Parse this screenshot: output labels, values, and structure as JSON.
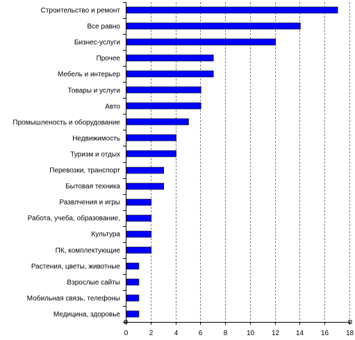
{
  "chart_data": {
    "type": "bar",
    "orientation": "horizontal",
    "title": "",
    "xlabel": "",
    "ylabel": "",
    "xlim": [
      0,
      18
    ],
    "xticks": [
      0,
      2,
      4,
      6,
      8,
      10,
      12,
      14,
      16,
      18
    ],
    "grid": "vertical-dashed",
    "legend": "none",
    "bar_color": "#0000ff",
    "categories": [
      "Строительство и ремонт",
      "Все равно",
      "Бизнес-услуги",
      "Прочее",
      "Мебель и интерьер",
      "Товары и услуги",
      "Авто",
      "Промышленость и оборудование",
      "Недвижимость",
      "Туризм и отдых",
      "Перевозки, транспорт",
      "Бытовая техника",
      "Развлчения и игры",
      "Работа, учеба, образование,",
      "Культура",
      "ПК, комплектующие",
      "Растения, цветы, животные",
      "Взрослые сайты",
      "Мобильная связь, телефоны",
      "Медицина, здоровье"
    ],
    "values": [
      17,
      14,
      12,
      7,
      7,
      6,
      6,
      5,
      4,
      4,
      3,
      3,
      2,
      2,
      2,
      2,
      1,
      1,
      1,
      1
    ]
  }
}
